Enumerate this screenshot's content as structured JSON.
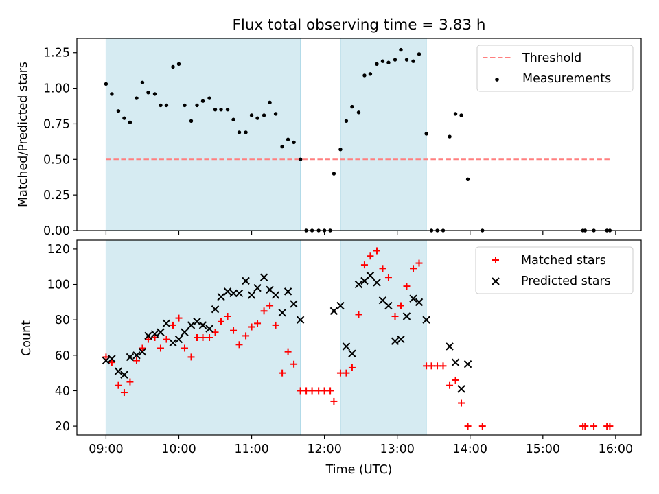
{
  "chart_data": [
    {
      "type": "scatter",
      "title": "Flux total observing time = 3.83 h",
      "xlabel": "",
      "ylabel": "Matched/Predicted stars",
      "xlim": [
        8.6,
        16.35
      ],
      "ylim": [
        0,
        1.35
      ],
      "yticks": [
        0,
        0.25,
        0.5,
        0.75,
        1.0,
        1.25
      ],
      "ytick_labels": [
        "0.00",
        "0.25",
        "0.50",
        "0.75",
        "1.00",
        "1.25"
      ],
      "shaded_spans": [
        [
          9.0,
          11.67
        ],
        [
          12.22,
          13.4
        ]
      ],
      "threshold": {
        "name": "Threshold",
        "value": 0.5,
        "x_range": [
          9.0,
          15.92
        ],
        "color": "#ff7f7f"
      },
      "legend": {
        "location": "top-right",
        "entries": [
          "Threshold",
          "Measurements"
        ]
      },
      "series": [
        {
          "name": "Measurements",
          "color": "#000000",
          "marker": "dot",
          "points": [
            [
              9.0,
              1.03
            ],
            [
              9.08,
              0.96
            ],
            [
              9.17,
              0.84
            ],
            [
              9.25,
              0.79
            ],
            [
              9.33,
              0.76
            ],
            [
              9.42,
              0.93
            ],
            [
              9.5,
              1.04
            ],
            [
              9.58,
              0.97
            ],
            [
              9.67,
              0.96
            ],
            [
              9.75,
              0.88
            ],
            [
              9.83,
              0.88
            ],
            [
              9.92,
              1.15
            ],
            [
              10.0,
              1.17
            ],
            [
              10.08,
              0.88
            ],
            [
              10.17,
              0.77
            ],
            [
              10.25,
              0.88
            ],
            [
              10.33,
              0.91
            ],
            [
              10.42,
              0.93
            ],
            [
              10.5,
              0.85
            ],
            [
              10.58,
              0.85
            ],
            [
              10.67,
              0.85
            ],
            [
              10.75,
              0.78
            ],
            [
              10.83,
              0.69
            ],
            [
              10.92,
              0.69
            ],
            [
              11.0,
              0.81
            ],
            [
              11.08,
              0.79
            ],
            [
              11.17,
              0.81
            ],
            [
              11.25,
              0.9
            ],
            [
              11.33,
              0.82
            ],
            [
              11.42,
              0.59
            ],
            [
              11.5,
              0.64
            ],
            [
              11.58,
              0.62
            ],
            [
              11.67,
              0.5
            ],
            [
              11.75,
              0.0
            ],
            [
              11.83,
              0.0
            ],
            [
              11.92,
              0.0
            ],
            [
              12.0,
              0.0
            ],
            [
              12.08,
              0.0
            ],
            [
              12.13,
              0.4
            ],
            [
              12.22,
              0.57
            ],
            [
              12.3,
              0.77
            ],
            [
              12.38,
              0.87
            ],
            [
              12.47,
              0.83
            ],
            [
              12.55,
              1.09
            ],
            [
              12.63,
              1.1
            ],
            [
              12.72,
              1.17
            ],
            [
              12.8,
              1.19
            ],
            [
              12.88,
              1.18
            ],
            [
              12.97,
              1.2
            ],
            [
              13.05,
              1.27
            ],
            [
              13.13,
              1.2
            ],
            [
              13.22,
              1.19
            ],
            [
              13.3,
              1.24
            ],
            [
              13.4,
              0.68
            ],
            [
              13.47,
              0.0
            ],
            [
              13.55,
              0.0
            ],
            [
              13.63,
              0.0
            ],
            [
              13.72,
              0.66
            ],
            [
              13.8,
              0.82
            ],
            [
              13.88,
              0.81
            ],
            [
              13.97,
              0.36
            ],
            [
              14.17,
              0.0
            ],
            [
              15.55,
              0.0
            ],
            [
              15.58,
              0.0
            ],
            [
              15.7,
              0.0
            ],
            [
              15.88,
              0.0
            ],
            [
              15.92,
              0.0
            ]
          ]
        }
      ]
    },
    {
      "type": "scatter",
      "title": "",
      "xlabel": "Time (UTC)",
      "ylabel": "Count",
      "xlim": [
        8.6,
        16.35
      ],
      "ylim": [
        15,
        125
      ],
      "yticks": [
        20,
        40,
        60,
        80,
        100,
        120
      ],
      "ytick_labels": [
        "20",
        "40",
        "60",
        "80",
        "100",
        "120"
      ],
      "xticks": [
        9,
        10,
        11,
        12,
        13,
        14,
        15,
        16
      ],
      "xtick_labels": [
        "09:00",
        "10:00",
        "11:00",
        "12:00",
        "13:00",
        "14:00",
        "15:00",
        "16:00"
      ],
      "shaded_spans": [
        [
          9.0,
          11.67
        ],
        [
          12.22,
          13.4
        ]
      ],
      "legend": {
        "location": "top-right",
        "entries": [
          "Matched stars",
          "Predicted stars"
        ]
      },
      "series": [
        {
          "name": "Matched stars",
          "color": "#ff0000",
          "marker": "plus",
          "points": [
            [
              9.0,
              59
            ],
            [
              9.08,
              56
            ],
            [
              9.17,
              43
            ],
            [
              9.25,
              39
            ],
            [
              9.33,
              45
            ],
            [
              9.42,
              57
            ],
            [
              9.5,
              64
            ],
            [
              9.58,
              69
            ],
            [
              9.67,
              70
            ],
            [
              9.75,
              64
            ],
            [
              9.83,
              69
            ],
            [
              9.92,
              77
            ],
            [
              10.0,
              81
            ],
            [
              10.08,
              64
            ],
            [
              10.17,
              59
            ],
            [
              10.25,
              70
            ],
            [
              10.33,
              70
            ],
            [
              10.42,
              70
            ],
            [
              10.5,
              73
            ],
            [
              10.58,
              79
            ],
            [
              10.67,
              82
            ],
            [
              10.75,
              74
            ],
            [
              10.83,
              66
            ],
            [
              10.92,
              71
            ],
            [
              11.0,
              76
            ],
            [
              11.08,
              78
            ],
            [
              11.17,
              85
            ],
            [
              11.25,
              88
            ],
            [
              11.33,
              77
            ],
            [
              11.42,
              50
            ],
            [
              11.5,
              62
            ],
            [
              11.58,
              55
            ],
            [
              11.67,
              40
            ],
            [
              11.75,
              40
            ],
            [
              11.83,
              40
            ],
            [
              11.92,
              40
            ],
            [
              12.0,
              40
            ],
            [
              12.08,
              40
            ],
            [
              12.13,
              34
            ],
            [
              12.22,
              50
            ],
            [
              12.3,
              50
            ],
            [
              12.38,
              53
            ],
            [
              12.47,
              83
            ],
            [
              12.55,
              111
            ],
            [
              12.63,
              116
            ],
            [
              12.72,
              119
            ],
            [
              12.8,
              109
            ],
            [
              12.88,
              104
            ],
            [
              12.97,
              82
            ],
            [
              13.05,
              88
            ],
            [
              13.13,
              99
            ],
            [
              13.22,
              109
            ],
            [
              13.3,
              112
            ],
            [
              13.4,
              54
            ],
            [
              13.47,
              54
            ],
            [
              13.55,
              54
            ],
            [
              13.63,
              54
            ],
            [
              13.72,
              43
            ],
            [
              13.8,
              46
            ],
            [
              13.88,
              33
            ],
            [
              13.97,
              20
            ],
            [
              14.17,
              20
            ],
            [
              15.55,
              20
            ],
            [
              15.58,
              20
            ],
            [
              15.7,
              20
            ],
            [
              15.88,
              20
            ],
            [
              15.92,
              20
            ]
          ]
        },
        {
          "name": "Predicted stars",
          "color": "#000000",
          "marker": "x",
          "points": [
            [
              9.0,
              57
            ],
            [
              9.08,
              58
            ],
            [
              9.17,
              51
            ],
            [
              9.25,
              49
            ],
            [
              9.33,
              59
            ],
            [
              9.42,
              60
            ],
            [
              9.5,
              62
            ],
            [
              9.58,
              71
            ],
            [
              9.67,
              72
            ],
            [
              9.75,
              73
            ],
            [
              9.83,
              78
            ],
            [
              9.92,
              67
            ],
            [
              10.0,
              69
            ],
            [
              10.08,
              73
            ],
            [
              10.17,
              77
            ],
            [
              10.25,
              79
            ],
            [
              10.33,
              77
            ],
            [
              10.42,
              75
            ],
            [
              10.5,
              86
            ],
            [
              10.58,
              93
            ],
            [
              10.67,
              96
            ],
            [
              10.75,
              95
            ],
            [
              10.83,
              95
            ],
            [
              10.92,
              102
            ],
            [
              11.0,
              94
            ],
            [
              11.08,
              98
            ],
            [
              11.17,
              104
            ],
            [
              11.25,
              97
            ],
            [
              11.33,
              94
            ],
            [
              11.42,
              84
            ],
            [
              11.5,
              96
            ],
            [
              11.58,
              89
            ],
            [
              11.67,
              80
            ],
            [
              12.13,
              85
            ],
            [
              12.22,
              88
            ],
            [
              12.3,
              65
            ],
            [
              12.38,
              61
            ],
            [
              12.47,
              100
            ],
            [
              12.55,
              102
            ],
            [
              12.63,
              105
            ],
            [
              12.72,
              101
            ],
            [
              12.8,
              91
            ],
            [
              12.88,
              88
            ],
            [
              12.97,
              68
            ],
            [
              13.05,
              69
            ],
            [
              13.13,
              82
            ],
            [
              13.22,
              92
            ],
            [
              13.3,
              90
            ],
            [
              13.4,
              80
            ],
            [
              13.72,
              65
            ],
            [
              13.8,
              56
            ],
            [
              13.88,
              41
            ],
            [
              13.97,
              55
            ]
          ]
        }
      ]
    }
  ]
}
